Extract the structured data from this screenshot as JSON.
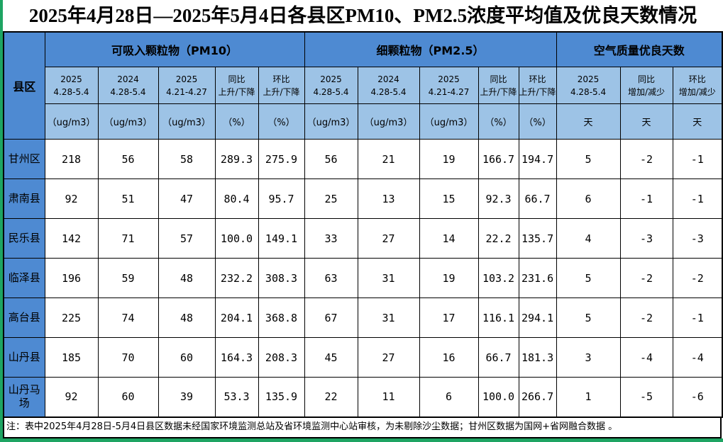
{
  "title": "2025年4月28日—2025年5月4日各县区PM10、PM2.5浓度平均值及优良天数情况",
  "colors": {
    "group_header_blue": "#4e8ad2",
    "subheader_blue": "#9dc3e6",
    "edge_green": "#1ea463",
    "border_black": "#000000"
  },
  "table": {
    "corner_header": "县区",
    "groups": [
      {
        "label": "可吸入颗粒物（PM10）",
        "span": 5
      },
      {
        "label": "细颗粒物（PM2.5）",
        "span": 5
      },
      {
        "label": "空气质量优良天数",
        "span": 3
      }
    ],
    "sub_headers": [
      "2025\n4.28-5.4",
      "2024\n4.28-5.4",
      "2025\n4.21-4.27",
      "同比\n上升/下降",
      "环比\n上升/下降",
      "2025\n4.28-5.4",
      "2024\n4.28-5.4",
      "2025\n4.21-4.27",
      "同比\n上升/下降",
      "环比\n上升/下降",
      "2025\n4.28-5.4",
      "同比\n增加/减少",
      "环比\n增加/减少"
    ],
    "units": [
      "（ug/m3）",
      "（ug/m3）",
      "（ug/m3）",
      "（%）",
      "（%）",
      "（ug/m3）",
      "（ug/m3）",
      "（ug/m3）",
      "（%）",
      "（%）",
      "天",
      "天",
      "天"
    ],
    "rows": [
      {
        "name": "甘州区",
        "values": [
          "218",
          "56",
          "58",
          "289.3",
          "275.9",
          "56",
          "21",
          "19",
          "166.7",
          "194.7",
          "5",
          "-2",
          "-1"
        ]
      },
      {
        "name": "肃南县",
        "values": [
          "92",
          "51",
          "47",
          "80.4",
          "95.7",
          "25",
          "13",
          "15",
          "92.3",
          "66.7",
          "6",
          "-1",
          "-1"
        ]
      },
      {
        "name": "民乐县",
        "values": [
          "142",
          "71",
          "57",
          "100.0",
          "149.1",
          "33",
          "27",
          "14",
          "22.2",
          "135.7",
          "4",
          "-3",
          "-3"
        ]
      },
      {
        "name": "临泽县",
        "values": [
          "196",
          "59",
          "48",
          "232.2",
          "308.3",
          "63",
          "31",
          "19",
          "103.2",
          "231.6",
          "5",
          "-2",
          "-2"
        ]
      },
      {
        "name": "高台县",
        "values": [
          "225",
          "74",
          "48",
          "204.1",
          "368.8",
          "67",
          "31",
          "17",
          "116.1",
          "294.1",
          "5",
          "-2",
          "-1"
        ]
      },
      {
        "name": "山丹县",
        "values": [
          "185",
          "70",
          "60",
          "164.3",
          "208.3",
          "45",
          "27",
          "16",
          "66.7",
          "181.3",
          "3",
          "-4",
          "-4"
        ]
      },
      {
        "name": "山丹马场",
        "values": [
          "92",
          "60",
          "39",
          "53.3",
          "135.9",
          "22",
          "11",
          "6",
          "100.0",
          "266.7",
          "1",
          "-5",
          "-6"
        ]
      }
    ],
    "note": "注：表中2025年4月28日-5月4日县区数据未经国家环境监测总站及省环境监测中心站审核，为未剔除沙尘数据；甘州区数据为国网+省网融合数据 。"
  }
}
